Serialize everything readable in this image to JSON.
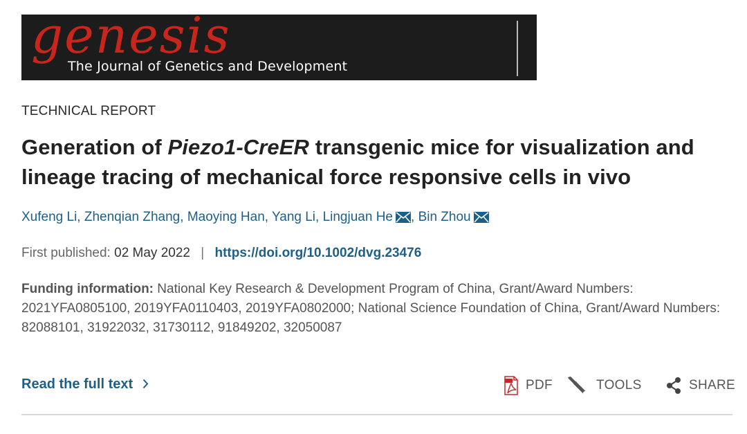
{
  "banner": {
    "logo_text": "genesis",
    "tagline": "The Journal of Genetics and Development"
  },
  "article": {
    "type": "TECHNICAL REPORT",
    "title_part1": "Generation of ",
    "title_italic": "Piezo1-CreER",
    "title_part2": " transgenic mice for visualization and lineage tracing of mechanical force responsive cells in vivo",
    "authors": [
      {
        "name": "Xufeng Li",
        "corresponding": false
      },
      {
        "name": "Zhenqian Zhang",
        "corresponding": false
      },
      {
        "name": "Maoying Han",
        "corresponding": false
      },
      {
        "name": "Yang Li",
        "corresponding": false
      },
      {
        "name": "Lingjuan He",
        "corresponding": true
      },
      {
        "name": "Bin Zhou",
        "corresponding": true
      }
    ],
    "first_published_label": "First published:",
    "first_published_date": "02 May 2022",
    "separator": "|",
    "doi": "https://doi.org/10.1002/dvg.23476",
    "funding_label": "Funding information:",
    "funding_text": "National Key Research & Development Program of China, Grant/Award Numbers: 2021YFA0805100, 2019YFA0110403, 2019YFA0802000; National Science Foundation of China, Grant/Award Numbers: 82088101, 31922032, 31730112, 91849202, 32050087"
  },
  "actions": {
    "read_full_text": "Read the full text",
    "pdf": "PDF",
    "tools": "TOOLS",
    "share": "SHARE"
  },
  "colors": {
    "link": "#1e5f88",
    "banner_bg": "#1c1c1c",
    "logo": "#c8251c",
    "pdf_red": "#c62828"
  },
  "icons": {
    "pdf": "pdf-file-icon",
    "tools": "wrench-icon",
    "share": "share-icon",
    "mail": "envelope-icon",
    "chevron": "chevron-right-icon"
  }
}
